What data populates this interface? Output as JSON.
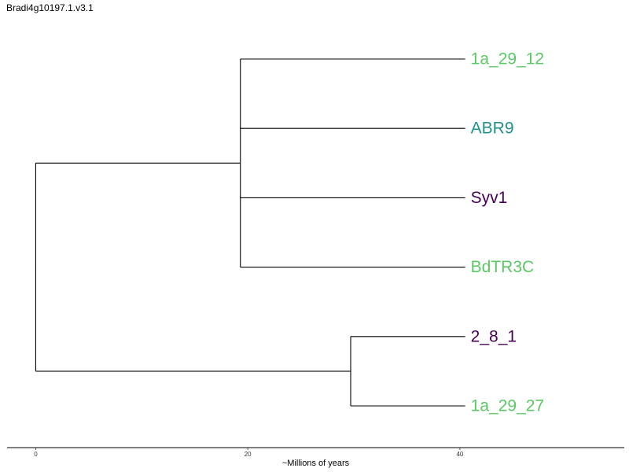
{
  "chart_data": {
    "type": "tree",
    "title": "Bradi4g10197.1.v3.1",
    "xlabel": "~Millions of years",
    "xlim": [
      -2.7,
      55.5
    ],
    "x_ticks": [
      0,
      20,
      40
    ],
    "tip_depth": 40.5,
    "tips": [
      {
        "name": "1a_29_12",
        "color": "#5ac864"
      },
      {
        "name": "ABR9",
        "color": "#21908c"
      },
      {
        "name": "Syv1",
        "color": "#440154"
      },
      {
        "name": "BdTR3C",
        "color": "#5ac864"
      },
      {
        "name": "2_8_1",
        "color": "#440154"
      },
      {
        "name": "1a_29_27",
        "color": "#5ac864"
      }
    ],
    "clades": [
      {
        "node_age": 19.3,
        "tips": [
          "1a_29_12",
          "ABR9",
          "Syv1",
          "BdTR3C"
        ]
      },
      {
        "node_age": 29.7,
        "tips": [
          "2_8_1",
          "1a_29_27"
        ]
      }
    ],
    "root_age": 0
  }
}
